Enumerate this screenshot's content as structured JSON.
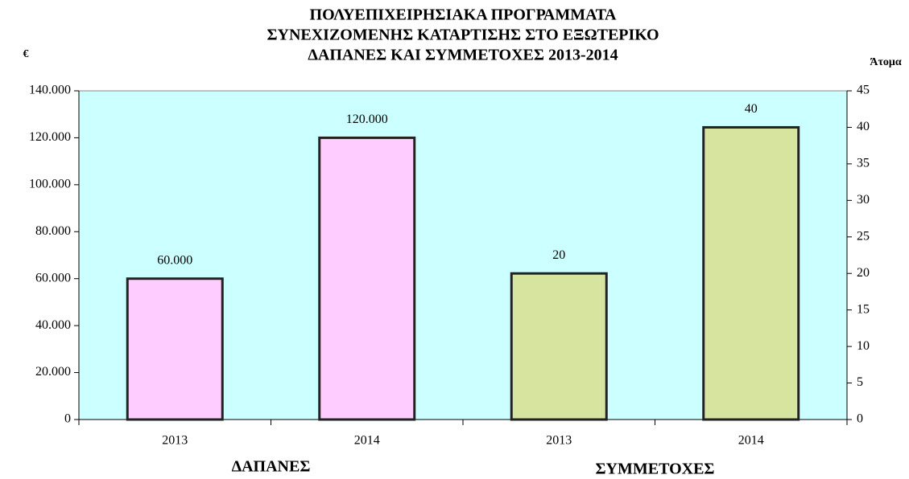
{
  "chart_data": {
    "type": "bar",
    "title": [
      "ΠΟΛΥΕΠΙΧΕΙΡΗΣΙΑΚΑ ΠΡΟΓΡΑΜΜΑΤΑ",
      "ΣΥΝΕΧΙΖΟΜΕΝΗΣ ΚΑΤΑΡΤΙΣΗΣ ΣΤΟ ΕΞΩΤΕΡΙΚΟ",
      "ΔΑΠΑΝΕΣ ΚΑΙ ΣΥΜΜΕΤΟΧΕΣ 2013-2014"
    ],
    "y_label": "€",
    "y2_label": "Άτομα",
    "categories": [
      "2013",
      "2014",
      "2013",
      "2014"
    ],
    "series": [
      {
        "name": "ΔΑΠΑΝΕΣ",
        "color": "#ffccff",
        "values": [
          60000,
          120000,
          null,
          null
        ],
        "value_labels": [
          "60.000",
          "120.000",
          null,
          null
        ]
      },
      {
        "name": "ΣΥΜΜΕΤΟΧΕΣ",
        "color": "#d7e4a0",
        "axis": "y2",
        "values": [
          null,
          null,
          20,
          40
        ]
      }
    ],
    "ylim": [
      0,
      140000
    ],
    "yticks": [
      0,
      {
        "value": 20000,
        "label": "20.000"
      },
      {
        "value": 40000,
        "label": "40.000"
      },
      {
        "value": 60000,
        "label": "60.000"
      },
      {
        "value": 80000,
        "label": "80.000"
      },
      {
        "value": 100000,
        "label": "100.000"
      },
      {
        "value": 120000,
        "label": "120.000"
      },
      {
        "value": 140000,
        "label": "140.000"
      }
    ],
    "y2lim": [
      0,
      45
    ],
    "y2ticks": [
      0,
      5,
      10,
      15,
      20,
      25,
      30,
      35,
      40,
      45
    ],
    "plot_background": "#ccffff"
  }
}
